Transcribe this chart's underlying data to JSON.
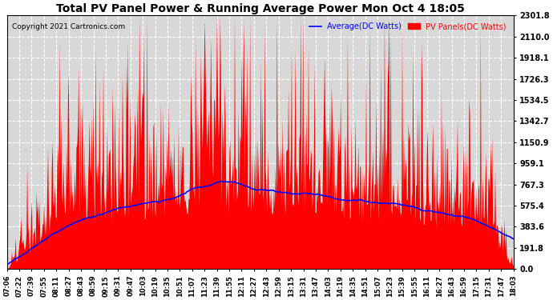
{
  "title": "Total PV Panel Power & Running Average Power Mon Oct 4 18:05",
  "copyright": "Copyright 2021 Cartronics.com",
  "legend_avg": "Average(DC Watts)",
  "legend_pv": "PV Panels(DC Watts)",
  "ylabel_ticks": [
    0.0,
    191.8,
    383.6,
    575.4,
    767.3,
    959.1,
    1150.9,
    1342.7,
    1534.5,
    1726.3,
    1918.1,
    2110.0,
    2301.8
  ],
  "ymax": 2301.8,
  "ymin": 0.0,
  "bg_color": "#ffffff",
  "plot_bg_color": "#d8d8d8",
  "grid_color": "#ffffff",
  "pv_color": "#ff0000",
  "avg_color": "#0000ff",
  "title_color": "#000000",
  "copyright_color": "#000000",
  "legend_avg_color": "#0000ff",
  "legend_pv_color": "#ff0000",
  "x_labels": [
    "07:06",
    "07:22",
    "07:39",
    "07:55",
    "08:11",
    "08:27",
    "08:43",
    "08:59",
    "09:15",
    "09:31",
    "09:47",
    "10:03",
    "10:19",
    "10:35",
    "10:51",
    "11:07",
    "11:23",
    "11:39",
    "11:55",
    "12:11",
    "12:27",
    "12:43",
    "12:59",
    "13:15",
    "13:31",
    "13:47",
    "14:03",
    "14:19",
    "14:35",
    "14:51",
    "15:07",
    "15:23",
    "15:39",
    "15:55",
    "16:11",
    "16:27",
    "16:43",
    "16:59",
    "17:15",
    "17:31",
    "17:47",
    "18:03"
  ]
}
